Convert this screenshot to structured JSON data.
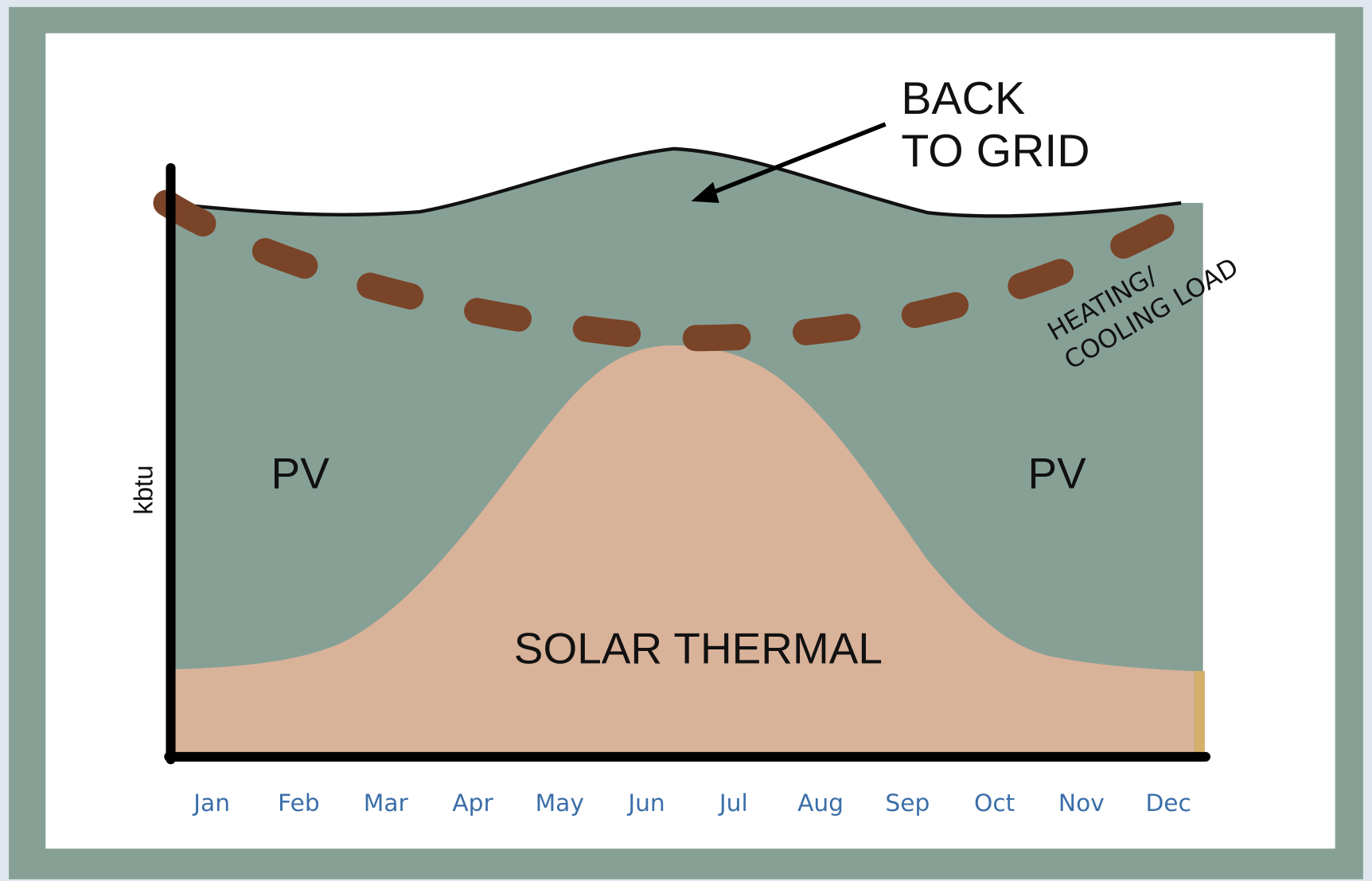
{
  "chart": {
    "y_axis_label": "kbtu",
    "months": [
      "Jan",
      "Feb",
      "Mar",
      "Apr",
      "May",
      "Jun",
      "Jul",
      "Aug",
      "Sep",
      "Oct",
      "Nov",
      "Dec"
    ],
    "regions": [
      "PV",
      "PV",
      "SOLAR THERMAL"
    ],
    "annotations": {
      "back_to_grid": [
        "BACK",
        "TO GRID"
      ],
      "load": [
        "HEATING/",
        "COOLING LOAD"
      ]
    }
  }
}
